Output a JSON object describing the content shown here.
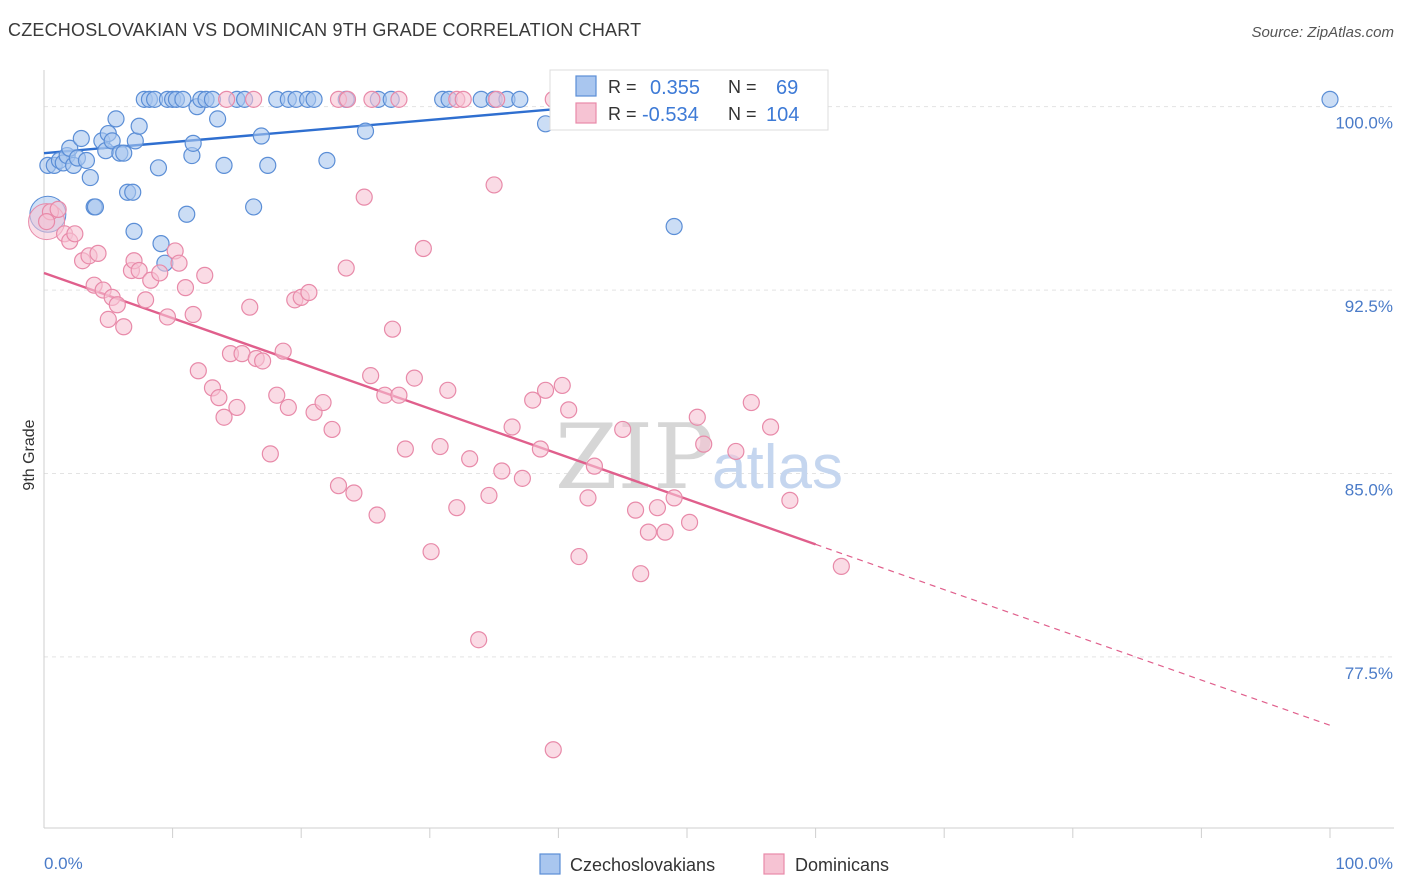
{
  "title": "CZECHOSLOVAKIAN VS DOMINICAN 9TH GRADE CORRELATION CHART",
  "source": "Source: ZipAtlas.com",
  "watermark": {
    "zip": "ZIP",
    "atlas": "atlas"
  },
  "colors": {
    "blue_fill": "#a9c6ef",
    "blue_stroke": "#5b8ed6",
    "blue_line": "#2f6fd0",
    "pink_fill": "#f6c3d3",
    "pink_stroke": "#e88aa9",
    "pink_line": "#e05f8c",
    "tick_text": "#4a7bc8",
    "grid": "#e3e3e3"
  },
  "legend_top": {
    "rows": [
      {
        "r_label": "R =",
        "r_value": "0.355",
        "n_label": "N =",
        "n_value": "69",
        "color": "blue"
      },
      {
        "r_label": "R =",
        "r_value": "-0.534",
        "n_label": "N =",
        "n_value": "104",
        "color": "pink"
      }
    ]
  },
  "legend_bottom": [
    "Czechoslovakians",
    "Dominicans"
  ],
  "chart_data": {
    "type": "scatter",
    "title": "CZECHOSLOVAKIAN VS DOMINICAN 9TH GRADE CORRELATION CHART",
    "xlabel": "",
    "ylabel": "9th Grade",
    "xlim": [
      0,
      100
    ],
    "ylim": [
      70.5,
      101.5
    ],
    "x_tick_labels": [
      "0.0%",
      "100.0%"
    ],
    "y_ticks": [
      100.0,
      92.5,
      85.0,
      77.5
    ],
    "y_tick_labels": [
      "100.0%",
      "92.5%",
      "85.0%",
      "77.5%"
    ],
    "grid": true,
    "legend_placement": "top-center",
    "series": [
      {
        "name": "Czechoslovakians",
        "color": "#5b8ed6",
        "trend": {
          "x": [
            0,
            42
          ],
          "y": [
            98.1,
            100.0
          ],
          "extends_dashed_to_x": 50
        },
        "points": [
          [
            0.3,
            97.6
          ],
          [
            0.8,
            97.6
          ],
          [
            1.2,
            97.8
          ],
          [
            1.5,
            97.7
          ],
          [
            1.8,
            98.0
          ],
          [
            2.0,
            98.3
          ],
          [
            2.3,
            97.6
          ],
          [
            2.6,
            97.9
          ],
          [
            2.9,
            98.7
          ],
          [
            3.3,
            97.8
          ],
          [
            3.6,
            97.1
          ],
          [
            3.9,
            95.9
          ],
          [
            4.0,
            95.9
          ],
          [
            4.5,
            98.6
          ],
          [
            4.8,
            98.2
          ],
          [
            5.0,
            98.9
          ],
          [
            5.3,
            98.6
          ],
          [
            5.6,
            99.5
          ],
          [
            5.9,
            98.1
          ],
          [
            6.2,
            98.1
          ],
          [
            6.5,
            96.5
          ],
          [
            6.9,
            96.5
          ],
          [
            7.1,
            98.6
          ],
          [
            7.4,
            99.2
          ],
          [
            7.8,
            100.3
          ],
          [
            8.2,
            100.3
          ],
          [
            8.6,
            100.3
          ],
          [
            8.9,
            97.5
          ],
          [
            9.1,
            94.4
          ],
          [
            9.4,
            93.6
          ],
          [
            9.6,
            100.3
          ],
          [
            10.0,
            100.3
          ],
          [
            10.3,
            100.3
          ],
          [
            10.8,
            100.3
          ],
          [
            11.1,
            95.6
          ],
          [
            11.5,
            98.0
          ],
          [
            11.6,
            98.5
          ],
          [
            11.9,
            100.0
          ],
          [
            12.2,
            100.3
          ],
          [
            12.6,
            100.3
          ],
          [
            13.1,
            100.3
          ],
          [
            13.5,
            99.5
          ],
          [
            14.0,
            97.6
          ],
          [
            15.0,
            100.3
          ],
          [
            15.6,
            100.3
          ],
          [
            16.3,
            95.9
          ],
          [
            16.9,
            98.8
          ],
          [
            17.4,
            97.6
          ],
          [
            18.1,
            100.3
          ],
          [
            19.0,
            100.3
          ],
          [
            19.6,
            100.3
          ],
          [
            20.5,
            100.3
          ],
          [
            21.0,
            100.3
          ],
          [
            22.0,
            97.8
          ],
          [
            23.5,
            100.3
          ],
          [
            25.0,
            99.0
          ],
          [
            26.0,
            100.3
          ],
          [
            27.0,
            100.3
          ],
          [
            31.0,
            100.3
          ],
          [
            31.5,
            100.3
          ],
          [
            34.0,
            100.3
          ],
          [
            35.0,
            100.3
          ],
          [
            36.0,
            100.3
          ],
          [
            37.0,
            100.3
          ],
          [
            39.0,
            99.3
          ],
          [
            49.0,
            95.1
          ],
          [
            53.0,
            100.3
          ],
          [
            7.0,
            94.9
          ],
          [
            100.0,
            100.3
          ]
        ],
        "large_point": [
          0.3,
          95.6
        ]
      },
      {
        "name": "Dominicans",
        "color": "#e88aa9",
        "trend": {
          "x": [
            0,
            60
          ],
          "y": [
            93.2,
            82.1
          ],
          "extends_dashed_to_x": 100
        },
        "points": [
          [
            0.5,
            95.7
          ],
          [
            1.1,
            95.8
          ],
          [
            1.6,
            94.8
          ],
          [
            2.0,
            94.5
          ],
          [
            2.4,
            94.8
          ],
          [
            3.0,
            93.7
          ],
          [
            3.5,
            93.9
          ],
          [
            3.9,
            92.7
          ],
          [
            4.2,
            94.0
          ],
          [
            4.6,
            92.5
          ],
          [
            5.0,
            91.3
          ],
          [
            5.3,
            92.2
          ],
          [
            5.7,
            91.9
          ],
          [
            6.2,
            91.0
          ],
          [
            6.8,
            93.3
          ],
          [
            7.0,
            93.7
          ],
          [
            7.4,
            93.3
          ],
          [
            7.9,
            92.1
          ],
          [
            8.3,
            92.9
          ],
          [
            9.0,
            93.2
          ],
          [
            9.6,
            91.4
          ],
          [
            10.2,
            94.1
          ],
          [
            10.5,
            93.6
          ],
          [
            11.0,
            92.6
          ],
          [
            11.6,
            91.5
          ],
          [
            12.0,
            89.2
          ],
          [
            12.5,
            93.1
          ],
          [
            13.1,
            88.5
          ],
          [
            13.6,
            88.1
          ],
          [
            14.0,
            87.3
          ],
          [
            14.5,
            89.9
          ],
          [
            15.0,
            87.7
          ],
          [
            15.4,
            89.9
          ],
          [
            16.0,
            91.8
          ],
          [
            16.5,
            89.7
          ],
          [
            17.0,
            89.6
          ],
          [
            17.6,
            85.8
          ],
          [
            18.1,
            88.2
          ],
          [
            18.6,
            90.0
          ],
          [
            19.0,
            87.7
          ],
          [
            19.5,
            92.1
          ],
          [
            20.0,
            92.2
          ],
          [
            20.6,
            92.4
          ],
          [
            21.0,
            87.5
          ],
          [
            21.7,
            87.9
          ],
          [
            22.4,
            86.8
          ],
          [
            22.9,
            84.5
          ],
          [
            23.5,
            93.4
          ],
          [
            24.1,
            84.2
          ],
          [
            24.9,
            96.3
          ],
          [
            25.4,
            89.0
          ],
          [
            25.9,
            83.3
          ],
          [
            26.5,
            88.2
          ],
          [
            27.1,
            90.9
          ],
          [
            27.6,
            88.2
          ],
          [
            28.1,
            86.0
          ],
          [
            28.8,
            88.9
          ],
          [
            29.5,
            94.2
          ],
          [
            30.1,
            81.8
          ],
          [
            30.8,
            86.1
          ],
          [
            31.4,
            88.4
          ],
          [
            32.1,
            83.6
          ],
          [
            33.1,
            85.6
          ],
          [
            33.8,
            78.2
          ],
          [
            34.6,
            84.1
          ],
          [
            35.0,
            96.8
          ],
          [
            35.6,
            85.1
          ],
          [
            36.4,
            86.9
          ],
          [
            37.2,
            84.8
          ],
          [
            38.0,
            88.0
          ],
          [
            38.6,
            86.0
          ],
          [
            39.0,
            88.4
          ],
          [
            39.6,
            73.7
          ],
          [
            40.3,
            88.6
          ],
          [
            40.8,
            87.6
          ],
          [
            41.6,
            81.6
          ],
          [
            42.3,
            84.0
          ],
          [
            42.8,
            85.3
          ],
          [
            45.0,
            86.8
          ],
          [
            46.0,
            83.5
          ],
          [
            46.4,
            80.9
          ],
          [
            47.0,
            82.6
          ],
          [
            47.7,
            83.6
          ],
          [
            48.3,
            82.6
          ],
          [
            49.0,
            84.0
          ],
          [
            50.2,
            83.0
          ],
          [
            50.8,
            87.3
          ],
          [
            51.3,
            86.2
          ],
          [
            53.8,
            85.9
          ],
          [
            55.0,
            87.9
          ],
          [
            56.5,
            86.9
          ],
          [
            58.0,
            83.9
          ],
          [
            62.0,
            81.2
          ],
          [
            14.2,
            100.3
          ],
          [
            16.3,
            100.3
          ],
          [
            22.9,
            100.3
          ],
          [
            23.6,
            100.3
          ],
          [
            25.5,
            100.3
          ],
          [
            27.6,
            100.3
          ],
          [
            32.1,
            100.3
          ],
          [
            32.6,
            100.3
          ],
          [
            35.2,
            100.3
          ],
          [
            39.6,
            100.3
          ],
          [
            0.2,
            95.3
          ]
        ],
        "large_point": [
          0.2,
          95.3
        ]
      }
    ]
  }
}
